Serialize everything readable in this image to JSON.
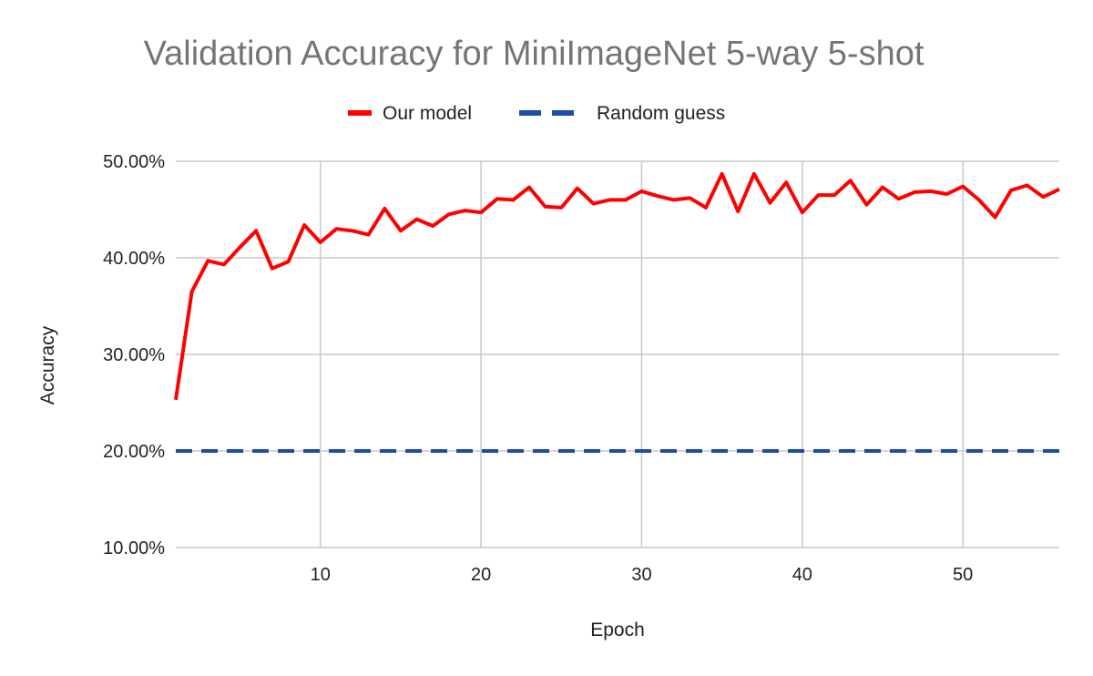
{
  "chart_data": {
    "type": "line",
    "title": "Validation Accuracy for MiniImageNet 5-way 5-shot",
    "xlabel": "Epoch",
    "ylabel": "Accuracy",
    "xlim": [
      1,
      56
    ],
    "ylim": [
      10,
      50
    ],
    "x_ticks": [
      10,
      20,
      30,
      40,
      50
    ],
    "y_ticks": [
      10,
      20,
      30,
      40,
      50
    ],
    "y_tick_labels": [
      "10.00%",
      "20.00%",
      "30.00%",
      "40.00%",
      "50.00%"
    ],
    "grid": true,
    "legend_position": "top",
    "series": [
      {
        "name": "Our model",
        "color": "#ff0000",
        "style": "solid",
        "x": [
          1,
          2,
          3,
          4,
          5,
          6,
          7,
          8,
          9,
          10,
          11,
          12,
          13,
          14,
          15,
          16,
          17,
          18,
          19,
          20,
          21,
          22,
          23,
          24,
          25,
          26,
          27,
          28,
          29,
          30,
          31,
          32,
          33,
          34,
          35,
          36,
          37,
          38,
          39,
          40,
          41,
          42,
          43,
          44,
          45,
          46,
          47,
          48,
          49,
          50,
          51,
          52,
          53,
          54,
          55,
          56
        ],
        "values": [
          25.3,
          36.5,
          39.7,
          39.3,
          41.1,
          42.8,
          38.9,
          39.6,
          43.4,
          41.6,
          43.0,
          42.8,
          42.4,
          45.1,
          42.8,
          44.0,
          43.3,
          44.5,
          44.9,
          44.7,
          46.1,
          46.0,
          47.3,
          45.3,
          45.2,
          47.2,
          45.6,
          46.0,
          46.0,
          46.9,
          46.4,
          46.0,
          46.2,
          45.2,
          48.7,
          44.8,
          48.7,
          45.7,
          47.8,
          44.7,
          46.5,
          46.5,
          48.0,
          45.5,
          47.3,
          46.1,
          46.8,
          46.9,
          46.6,
          47.4,
          46.0,
          44.2,
          47.0,
          47.5,
          46.3,
          47.1
        ]
      },
      {
        "name": "Random guess",
        "color": "#1c4cab",
        "style": "dashed",
        "x": [
          1,
          56
        ],
        "values": [
          20,
          20
        ]
      }
    ]
  }
}
